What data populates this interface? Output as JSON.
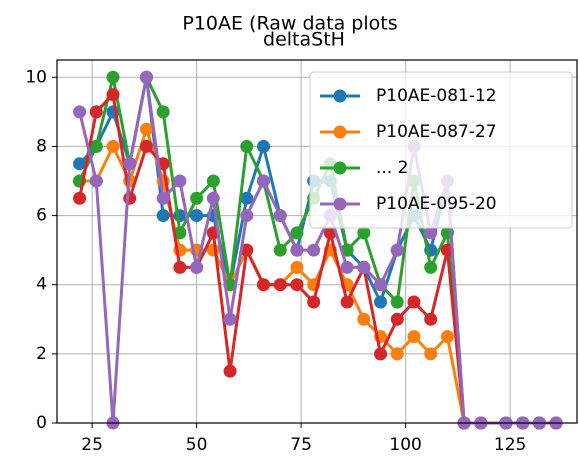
{
  "chart_data": {
    "type": "line",
    "title": "P10AE (Raw data plots",
    "subtitle": "deltaStH",
    "x": [
      22,
      26,
      30,
      34,
      38,
      42,
      46,
      50,
      54,
      58,
      62,
      66,
      70,
      74,
      78,
      82,
      86,
      90,
      94,
      98,
      102,
      106,
      110,
      114,
      118,
      124,
      128,
      132,
      136
    ],
    "series": [
      {
        "name": "P10AE-081-12",
        "color": "#1f77b4",
        "values": [
          7.5,
          8,
          9,
          7.5,
          10,
          6,
          6,
          6,
          6,
          4,
          6.5,
          8,
          6,
          5,
          7,
          7,
          5,
          4.5,
          3.5,
          5,
          6,
          5,
          7,
          0,
          0,
          0,
          0,
          0,
          0
        ]
      },
      {
        "name": "P10AE-087-27",
        "color": "#ff7f0e",
        "values": [
          7,
          7,
          8,
          7,
          8.5,
          7,
          5,
          5,
          5,
          4,
          5,
          4,
          4,
          4.5,
          4,
          5,
          4,
          3,
          2.5,
          2,
          2.5,
          2,
          2.5,
          0,
          0,
          0,
          0,
          0,
          0
        ]
      },
      {
        "name": "... 2",
        "color": "#2ca02c",
        "values": [
          7,
          8,
          10,
          7.5,
          10,
          9,
          5.5,
          6.5,
          7,
          4,
          8,
          7,
          5,
          5.5,
          6.5,
          7.5,
          5,
          5.5,
          4,
          3.5,
          7,
          4.5,
          5.5,
          0,
          0,
          0,
          0,
          0,
          0
        ]
      },
      {
        "color": "#d62728",
        "values": [
          6.5,
          9,
          9.5,
          6.5,
          8,
          7.5,
          4.5,
          4.5,
          5.5,
          1.5,
          5,
          4,
          4,
          4,
          3.5,
          5.5,
          3.5,
          4.5,
          2,
          3,
          3.5,
          3,
          5,
          0,
          0,
          0,
          0,
          0,
          0
        ]
      },
      {
        "name": "P10AE-095-20",
        "color": "#9467bd",
        "values": [
          9,
          7,
          0,
          7.5,
          10,
          6.5,
          7,
          4.5,
          6.5,
          3,
          6,
          7,
          6,
          5,
          5,
          6,
          4.5,
          4.5,
          4,
          5,
          8,
          5.5,
          7,
          0,
          0,
          0,
          0,
          0,
          0
        ]
      }
    ],
    "xlim": [
      16.6,
      141
    ],
    "ylim": [
      0,
      10.5
    ],
    "xticks": [
      25,
      50,
      75,
      100,
      125
    ],
    "yticks": [
      0,
      2,
      4,
      6,
      8,
      10
    ],
    "grid": true,
    "legend": "upper right"
  }
}
